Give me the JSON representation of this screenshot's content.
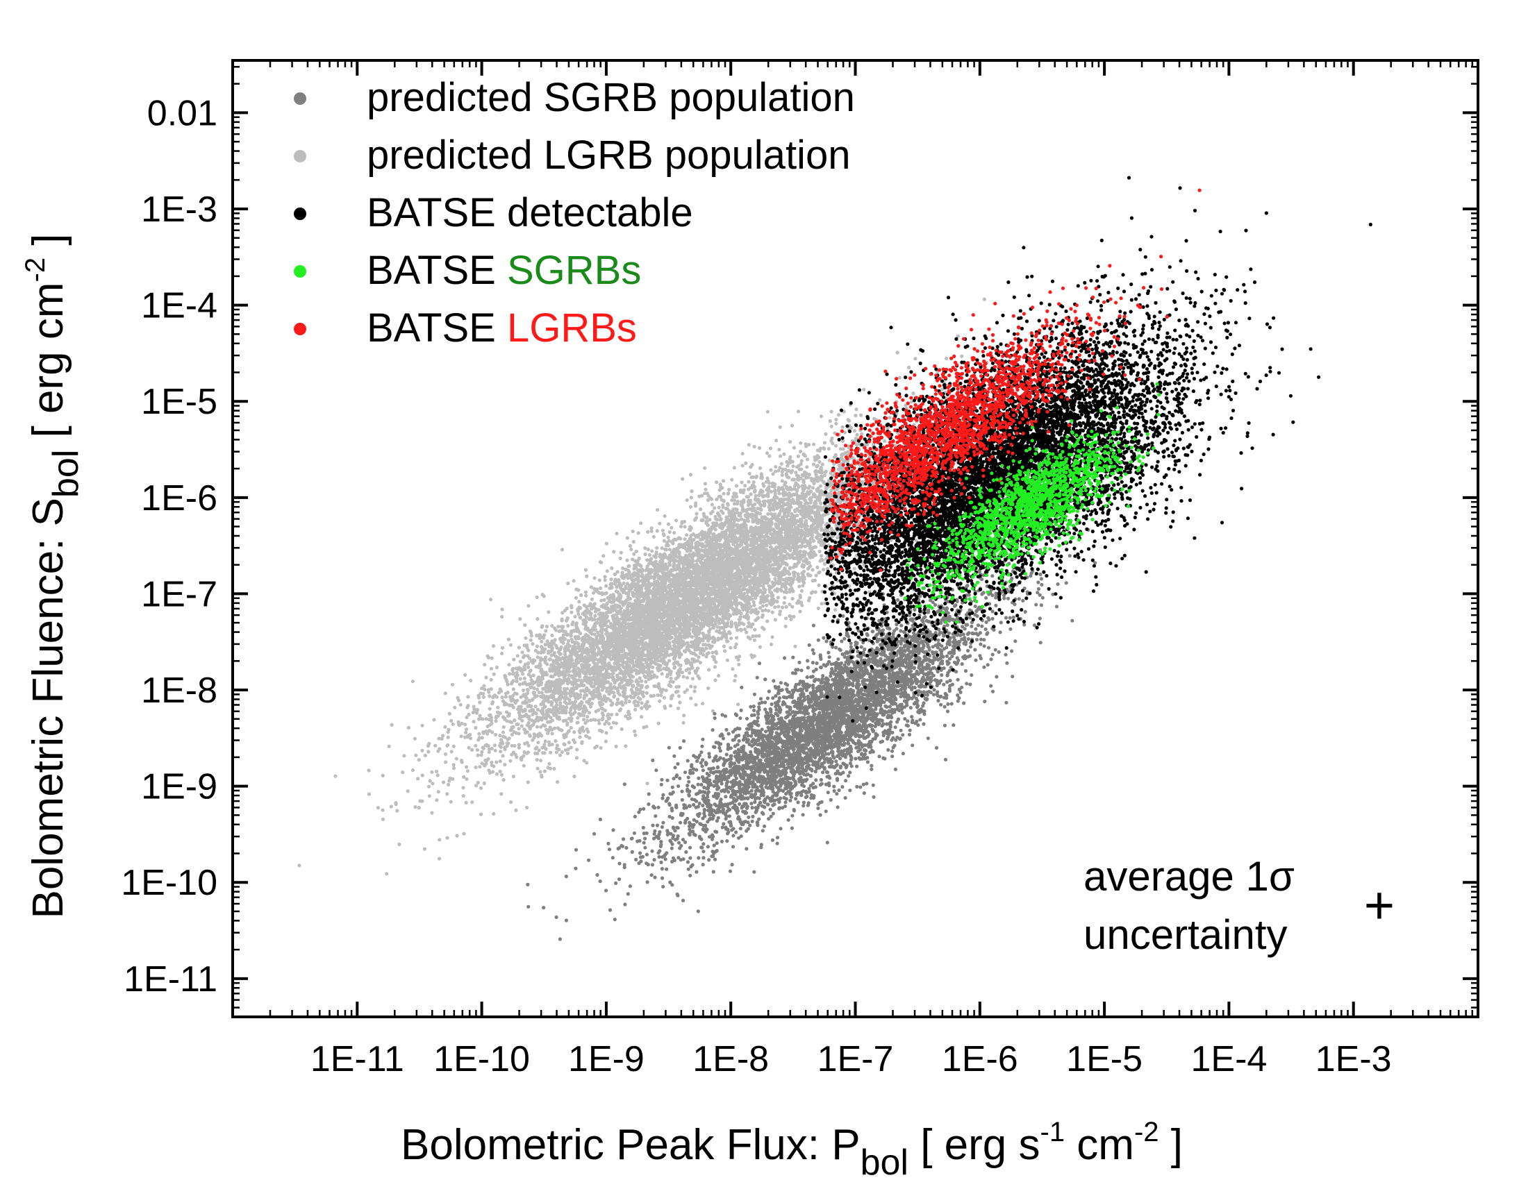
{
  "chart_data": {
    "type": "scatter",
    "title": "",
    "xlabel": {
      "main": "Bolometric Peak Flux:  P",
      "sub": "bol",
      "unit_open": " [ erg s",
      "sup1": "-1",
      "unit_mid": " cm",
      "sup2": "-2",
      "unit_close": " ]"
    },
    "ylabel": {
      "main": "Bolometric Fluence:  S",
      "sub": "bol",
      "unit_open": "  [ erg cm",
      "sup": "-2",
      "unit_close": " ]"
    },
    "xscale": "log",
    "yscale": "log",
    "xlim": [
      1e-12,
      0.01
    ],
    "ylim": [
      4e-12,
      0.035
    ],
    "x_ticks": [
      {
        "value": 1e-11,
        "label": "1E-11"
      },
      {
        "value": 1e-10,
        "label": "1E-10"
      },
      {
        "value": 1e-09,
        "label": "1E-9"
      },
      {
        "value": 1e-08,
        "label": "1E-8"
      },
      {
        "value": 1e-07,
        "label": "1E-7"
      },
      {
        "value": 1e-06,
        "label": "1E-6"
      },
      {
        "value": 1e-05,
        "label": "1E-5"
      },
      {
        "value": 0.0001,
        "label": "1E-4"
      },
      {
        "value": 0.001,
        "label": "1E-3"
      }
    ],
    "y_ticks": [
      {
        "value": 1e-11,
        "label": "1E-11"
      },
      {
        "value": 1e-10,
        "label": "1E-10"
      },
      {
        "value": 1e-09,
        "label": "1E-9"
      },
      {
        "value": 1e-08,
        "label": "1E-8"
      },
      {
        "value": 1e-07,
        "label": "1E-7"
      },
      {
        "value": 1e-06,
        "label": "1E-6"
      },
      {
        "value": 1e-05,
        "label": "1E-5"
      },
      {
        "value": 0.0001,
        "label": "1E-4"
      },
      {
        "value": 0.001,
        "label": "1E-3"
      },
      {
        "value": 0.01,
        "label": "0.01"
      }
    ],
    "legend": {
      "placement": "top-left",
      "entries": [
        {
          "color": "#7f7f7f",
          "parts": [
            {
              "text": "predicted SGRB population",
              "color": "#000000"
            }
          ]
        },
        {
          "color": "#bdbdbd",
          "parts": [
            {
              "text": "predicted LGRB population",
              "color": "#000000"
            }
          ]
        },
        {
          "color": "#000000",
          "parts": [
            {
              "text": "BATSE detectable",
              "color": "#000000"
            }
          ]
        },
        {
          "color": "#22ee22",
          "parts": [
            {
              "text": "BATSE ",
              "color": "#000000"
            },
            {
              "text": "SGRBs",
              "color": "#1a8a1a"
            }
          ]
        },
        {
          "color": "#ff1a1a",
          "parts": [
            {
              "text": "BATSE ",
              "color": "#000000"
            },
            {
              "text": "LGRBs",
              "color": "#ff1a1a"
            }
          ]
        }
      ]
    },
    "annotation": {
      "line1": "average 1σ",
      "line2": "uncertainty",
      "marker": "+",
      "placement": "bottom-right"
    },
    "series": [
      {
        "name": "predicted LGRB population",
        "color": "#bdbdbd",
        "n": 9000,
        "center_log_x": -8.3,
        "center_log_y": -7.0,
        "sd_major_log": 1.05,
        "sd_minor_log": 0.28,
        "slope": 0.95
      },
      {
        "name": "predicted SGRB population",
        "color": "#7f7f7f",
        "n": 5000,
        "center_log_x": -7.2,
        "center_log_y": -8.3,
        "sd_major_log": 0.85,
        "sd_minor_log": 0.24,
        "slope": 1.0
      },
      {
        "name": "BATSE detectable",
        "color": "#000000",
        "n": 9000,
        "center_log_x": -5.9,
        "center_log_y": -5.8,
        "sd_major_log": 0.95,
        "sd_minor_log": 0.45,
        "slope": 1.0,
        "min_log_x": -7.25
      },
      {
        "name": "BATSE LGRBs",
        "color": "#ff1a1a",
        "n": 2200,
        "center_log_x": -6.3,
        "center_log_y": -5.35,
        "sd_major_log": 0.75,
        "sd_minor_log": 0.22,
        "slope": 1.0,
        "min_log_x": -7.2
      },
      {
        "name": "BATSE SGRBs",
        "color": "#22ee22",
        "n": 1500,
        "center_log_x": -5.6,
        "center_log_y": -6.1,
        "sd_major_log": 0.5,
        "sd_minor_log": 0.18,
        "slope": 1.0,
        "min_log_x": -6.6
      }
    ]
  }
}
